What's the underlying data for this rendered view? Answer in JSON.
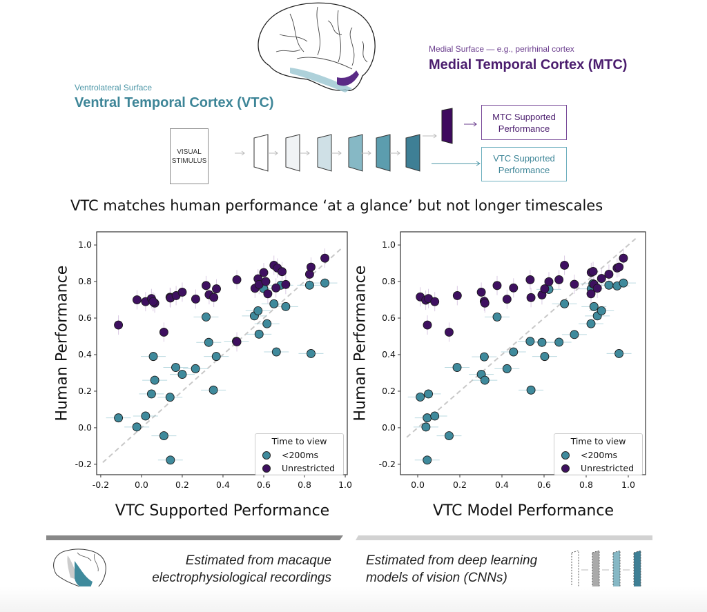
{
  "diagram": {
    "mtc_subtitle": "Medial Surface — e.g., perirhinal cortex",
    "mtc_title": "Medial Temporal Cortex (MTC)",
    "vtc_subtitle": "Ventrolateral Surface",
    "vtc_title": "Ventral Temporal Cortex (VTC)",
    "stimulus_line1": "VISUAL",
    "stimulus_line2": "STIMULUS",
    "mtc_output_line1": "MTC Supported",
    "mtc_output_line2": "Performance",
    "vtc_output_line1": "VTC Supported",
    "vtc_output_line2": "Performance",
    "layer_colors": [
      "#ffffff",
      "#f0f3f5",
      "#cfe0e6",
      "#86b8c5",
      "#5c9dae",
      "#3e7f95"
    ],
    "mtc_layer_color": "#3e0a5e"
  },
  "headline": "VTC matches human performance ‘at a glance’ but not longer timescales",
  "colors": {
    "teal": "#3f8a9c",
    "purple": "#3e1060",
    "teal_text": "#3d8597",
    "purple_text": "#4b1d6e"
  },
  "chart_data": [
    {
      "type": "scatter",
      "xlabel": "VTC Supported Performance",
      "ylabel": "Human Performance",
      "xlim": [
        -0.22,
        1.01
      ],
      "ylim": [
        -0.257,
        1.072
      ],
      "xticks": [
        "-0.2",
        "0.0",
        "0.2",
        "0.4",
        "0.6",
        "0.8",
        "1.0"
      ],
      "xtick_values": [
        -0.2,
        0.0,
        0.2,
        0.4,
        0.6,
        0.8,
        1.0
      ],
      "yticks": [
        "1.0",
        "0.8",
        "0.6",
        "0.4",
        "0.2",
        "0.0",
        "-0.2"
      ],
      "ytick_values": [
        1.0,
        0.8,
        0.6,
        0.4,
        0.2,
        0.0,
        -0.2
      ],
      "identity_line": true,
      "legend": {
        "title": "Time to view",
        "placement": "lower-right"
      },
      "series": [
        {
          "name": "<200ms",
          "color": "#3f8a9c",
          "points": [
            [
              -0.113,
              0.054
            ],
            [
              -0.023,
              0.004
            ],
            [
              0.02,
              0.064
            ],
            [
              0.049,
              0.185
            ],
            [
              0.065,
              0.26
            ],
            [
              0.058,
              0.39
            ],
            [
              0.11,
              -0.044
            ],
            [
              0.14,
              0.167
            ],
            [
              0.142,
              -0.177
            ],
            [
              0.168,
              0.33
            ],
            [
              0.2,
              0.292
            ],
            [
              0.265,
              0.323
            ],
            [
              0.317,
              0.606
            ],
            [
              0.33,
              0.467
            ],
            [
              0.353,
              0.206
            ],
            [
              0.367,
              0.39
            ],
            [
              0.466,
              0.473
            ],
            [
              0.554,
              0.612
            ],
            [
              0.572,
              0.64
            ],
            [
              0.577,
              0.512
            ],
            [
              0.616,
              0.569
            ],
            [
              0.6,
              0.761
            ],
            [
              0.65,
              0.678
            ],
            [
              0.662,
              0.415
            ],
            [
              0.684,
              0.78
            ],
            [
              0.708,
              0.663
            ],
            [
              0.825,
              0.78
            ],
            [
              0.832,
              0.406
            ],
            [
              0.9,
              0.792
            ]
          ]
        },
        {
          "name": "Unrestricted",
          "color": "#3e1060",
          "points": [
            [
              -0.113,
              0.562
            ],
            [
              -0.022,
              0.7
            ],
            [
              0.02,
              0.69
            ],
            [
              0.049,
              0.707
            ],
            [
              0.065,
              0.682
            ],
            [
              0.057,
              0.69
            ],
            [
              0.11,
              0.523
            ],
            [
              0.14,
              0.714
            ],
            [
              0.142,
              0.71
            ],
            [
              0.17,
              0.723
            ],
            [
              0.2,
              0.742
            ],
            [
              0.266,
              0.704
            ],
            [
              0.317,
              0.778
            ],
            [
              0.332,
              0.728
            ],
            [
              0.355,
              0.713
            ],
            [
              0.368,
              0.76
            ],
            [
              0.468,
              0.81
            ],
            [
              0.468,
              0.47
            ],
            [
              0.557,
              0.763
            ],
            [
              0.572,
              0.815
            ],
            [
              0.577,
              0.784
            ],
            [
              0.6,
              0.849
            ],
            [
              0.61,
              0.8
            ],
            [
              0.62,
              0.733
            ],
            [
              0.65,
              0.889
            ],
            [
              0.667,
              0.874
            ],
            [
              0.69,
              0.854
            ],
            [
              0.66,
              0.765
            ],
            [
              0.708,
              0.784
            ],
            [
              0.825,
              0.84
            ],
            [
              0.832,
              0.879
            ],
            [
              0.9,
              0.928
            ]
          ]
        }
      ]
    },
    {
      "type": "scatter",
      "xlabel": "VTC Model Performance",
      "ylabel": "Human Performance",
      "xlim": [
        -0.082,
        1.082
      ],
      "ylim": [
        -0.257,
        1.072
      ],
      "xticks": [
        "0.0",
        "0.2",
        "0.4",
        "0.6",
        "0.8",
        "1.0"
      ],
      "xtick_values": [
        0.0,
        0.2,
        0.4,
        0.6,
        0.8,
        1.0
      ],
      "yticks": [
        "1.0",
        "0.8",
        "0.6",
        "0.4",
        "0.2",
        "0.0",
        "-0.2"
      ],
      "ytick_values": [
        1.0,
        0.8,
        0.6,
        0.4,
        0.2,
        0.0,
        -0.2
      ],
      "identity_line": true,
      "legend": {
        "title": "Time to view",
        "placement": "lower-right"
      },
      "series": [
        {
          "name": "<200ms",
          "color": "#3f8a9c",
          "points": [
            [
              0.012,
              0.168
            ],
            [
              0.051,
              0.185
            ],
            [
              0.045,
              0.054
            ],
            [
              0.081,
              0.064
            ],
            [
              0.039,
              0.004
            ],
            [
              0.149,
              -0.044
            ],
            [
              0.045,
              -0.177
            ],
            [
              0.187,
              0.33
            ],
            [
              0.302,
              0.292
            ],
            [
              0.319,
              0.26
            ],
            [
              0.316,
              0.388
            ],
            [
              0.377,
              0.606
            ],
            [
              0.424,
              0.323
            ],
            [
              0.455,
              0.415
            ],
            [
              0.534,
              0.473
            ],
            [
              0.538,
              0.206
            ],
            [
              0.59,
              0.467
            ],
            [
              0.603,
              0.39
            ],
            [
              0.623,
              0.757
            ],
            [
              0.671,
              0.468
            ],
            [
              0.697,
              0.678
            ],
            [
              0.744,
              0.51
            ],
            [
              0.823,
              0.569
            ],
            [
              0.824,
              0.76
            ],
            [
              0.837,
              0.663
            ],
            [
              0.853,
              0.612
            ],
            [
              0.873,
              0.64
            ],
            [
              0.908,
              0.78
            ],
            [
              0.947,
              0.776
            ],
            [
              0.977,
              0.792
            ],
            [
              0.956,
              0.406
            ],
            [
              0.832,
              0.788
            ]
          ]
        },
        {
          "name": "Unrestricted",
          "color": "#3e1060",
          "points": [
            [
              0.012,
              0.716
            ],
            [
              0.038,
              0.698
            ],
            [
              0.051,
              0.707
            ],
            [
              0.081,
              0.69
            ],
            [
              0.046,
              0.562
            ],
            [
              0.149,
              0.523
            ],
            [
              0.188,
              0.723
            ],
            [
              0.302,
              0.742
            ],
            [
              0.316,
              0.692
            ],
            [
              0.319,
              0.682
            ],
            [
              0.377,
              0.778
            ],
            [
              0.424,
              0.703
            ],
            [
              0.455,
              0.765
            ],
            [
              0.534,
              0.81
            ],
            [
              0.538,
              0.712
            ],
            [
              0.59,
              0.727
            ],
            [
              0.603,
              0.76
            ],
            [
              0.623,
              0.799
            ],
            [
              0.671,
              0.81
            ],
            [
              0.697,
              0.889
            ],
            [
              0.744,
              0.785
            ],
            [
              0.824,
              0.85
            ],
            [
              0.833,
              0.855
            ],
            [
              0.823,
              0.733
            ],
            [
              0.837,
              0.785
            ],
            [
              0.853,
              0.763
            ],
            [
              0.873,
              0.817
            ],
            [
              0.908,
              0.84
            ],
            [
              0.947,
              0.874
            ],
            [
              0.956,
              0.879
            ],
            [
              0.977,
              0.928
            ]
          ]
        }
      ]
    }
  ],
  "footer": {
    "left_line1": "Estimated from macaque",
    "left_line2": "electrophysiological recordings",
    "right_line1": "Estimated from deep learning",
    "right_line2": "models of vision (CNNs)"
  }
}
